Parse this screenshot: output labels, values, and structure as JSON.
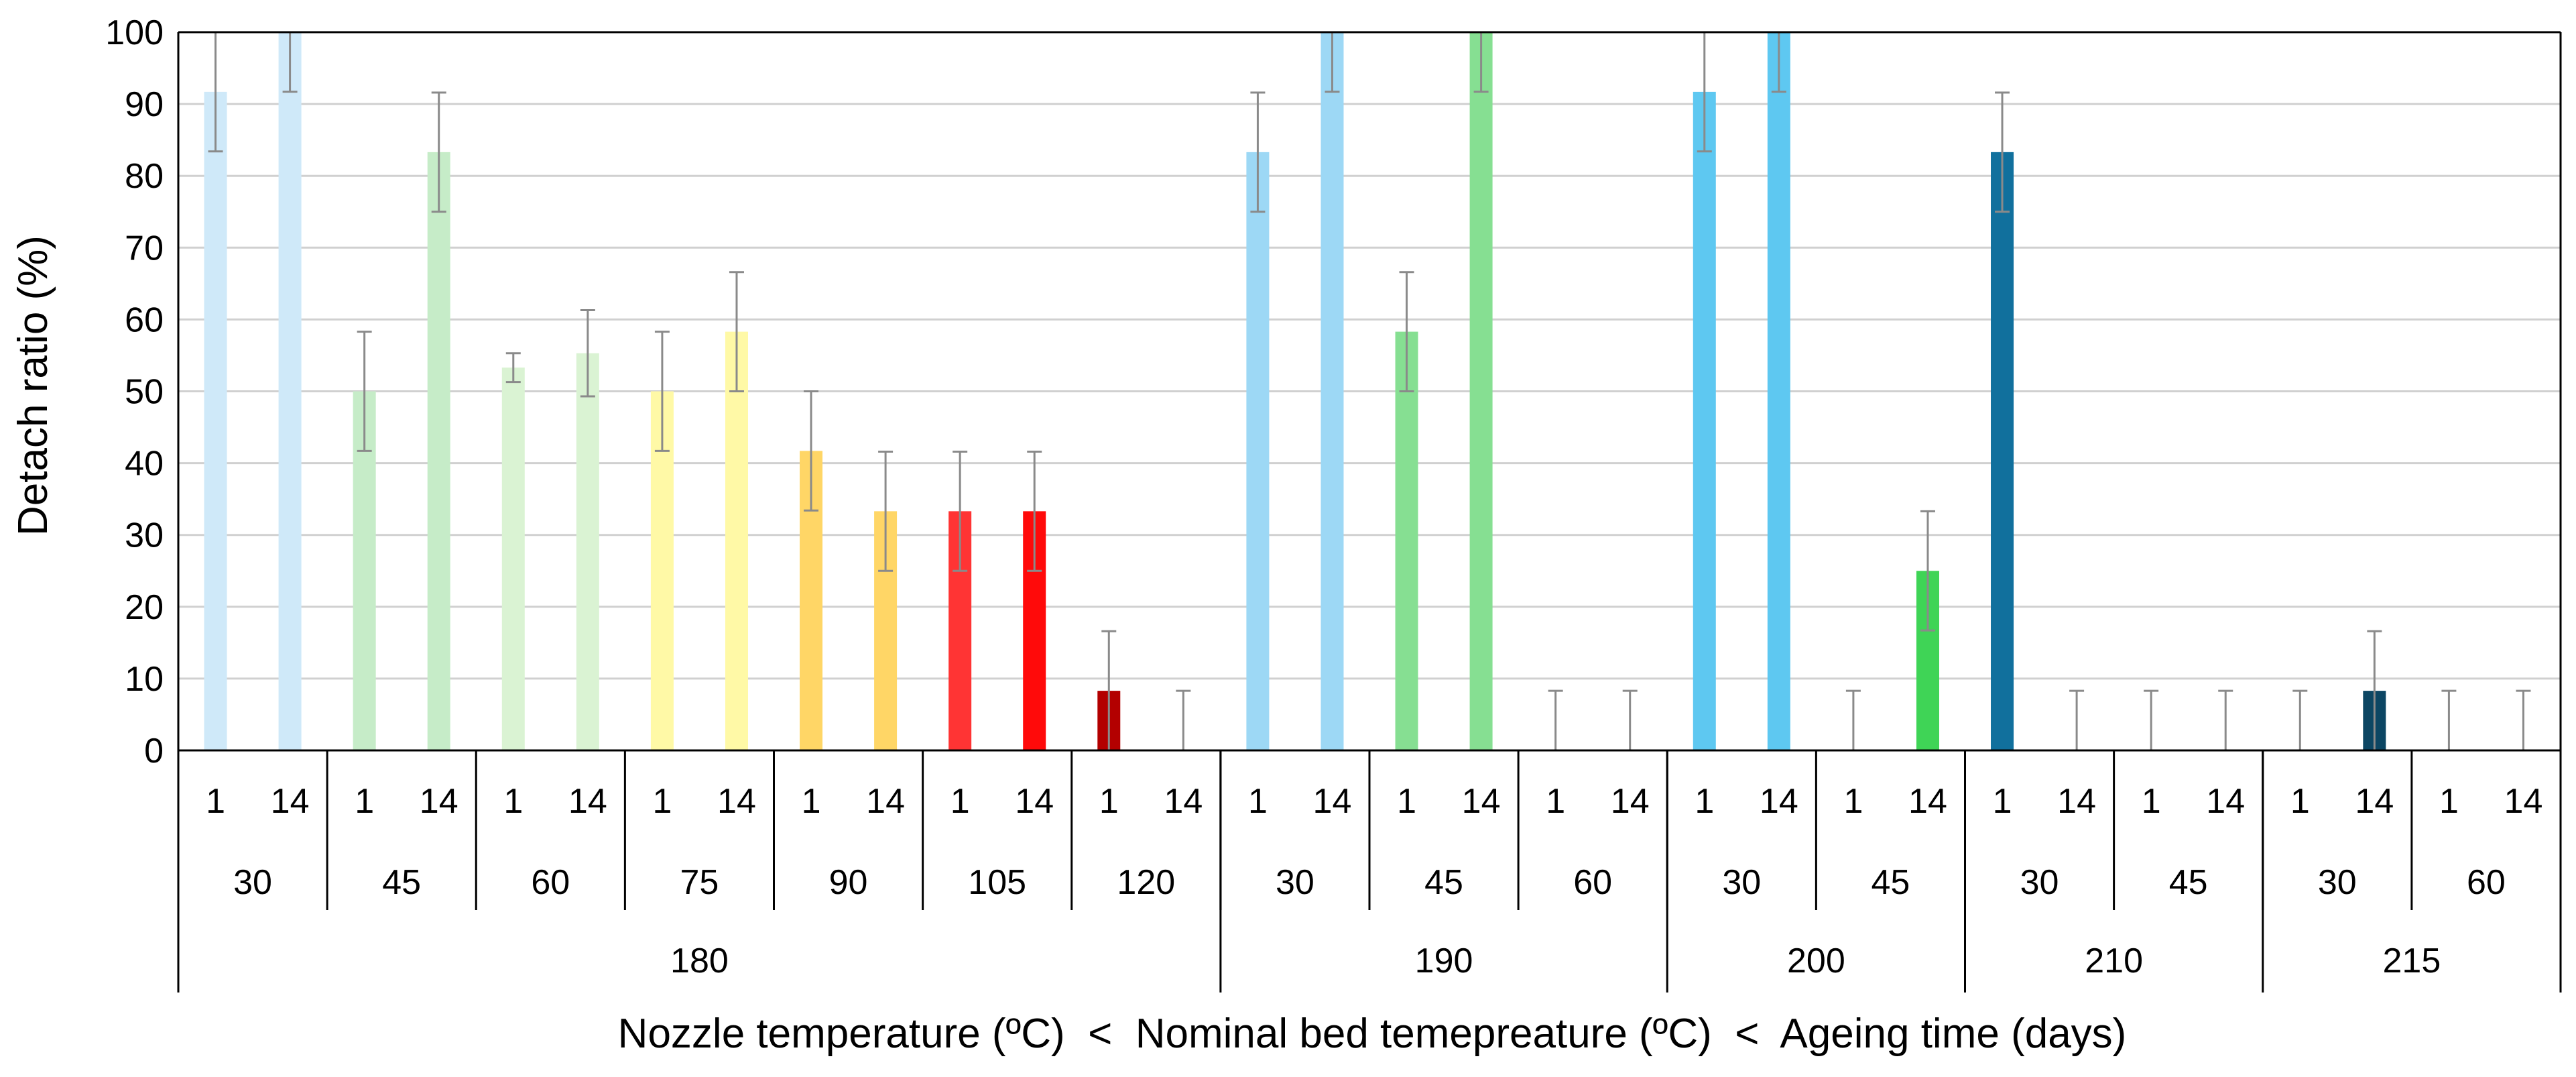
{
  "chart_data": {
    "type": "bar",
    "title": "",
    "ylabel": "Detach ratio (%)",
    "xlabel": "Nozzle temperature (ºC)  <  Nominal bed temepreature (ºC)  <  Ageing time (days)",
    "ylim": [
      0,
      100
    ],
    "yticks": [
      0,
      10,
      20,
      30,
      40,
      50,
      60,
      70,
      80,
      90,
      100
    ],
    "grid": true,
    "bars": [
      {
        "nozzle": "180",
        "bed": "30",
        "age": "1",
        "value": 91.7,
        "err": 8.3,
        "color": "#cfe9f9"
      },
      {
        "nozzle": "180",
        "bed": "30",
        "age": "14",
        "value": 100,
        "err": 8.3,
        "color": "#cfe9f9"
      },
      {
        "nozzle": "180",
        "bed": "45",
        "age": "1",
        "value": 50,
        "err": 8.3,
        "color": "#c6ecc8"
      },
      {
        "nozzle": "180",
        "bed": "45",
        "age": "14",
        "value": 83.3,
        "err": 8.3,
        "color": "#c6ecc8"
      },
      {
        "nozzle": "180",
        "bed": "60",
        "age": "1",
        "value": 53.3,
        "err": 2.0,
        "color": "#daf3d3"
      },
      {
        "nozzle": "180",
        "bed": "60",
        "age": "14",
        "value": 55.3,
        "err": 6.0,
        "color": "#daf3d3"
      },
      {
        "nozzle": "180",
        "bed": "75",
        "age": "1",
        "value": 50,
        "err": 8.3,
        "color": "#fff9a6"
      },
      {
        "nozzle": "180",
        "bed": "75",
        "age": "14",
        "value": 58.3,
        "err": 8.3,
        "color": "#fff9a6"
      },
      {
        "nozzle": "180",
        "bed": "90",
        "age": "1",
        "value": 41.7,
        "err": 8.3,
        "color": "#ffd666"
      },
      {
        "nozzle": "180",
        "bed": "90",
        "age": "14",
        "value": 33.3,
        "err": 8.3,
        "color": "#ffd666"
      },
      {
        "nozzle": "180",
        "bed": "105",
        "age": "1",
        "value": 33.3,
        "err": 8.3,
        "color": "#ff3434"
      },
      {
        "nozzle": "180",
        "bed": "105",
        "age": "14",
        "value": 33.3,
        "err": 8.3,
        "color": "#ff0a0a"
      },
      {
        "nozzle": "180",
        "bed": "120",
        "age": "1",
        "value": 8.3,
        "err": 8.3,
        "color": "#b30000"
      },
      {
        "nozzle": "180",
        "bed": "120",
        "age": "14",
        "value": 0,
        "err": 8.3,
        "color": "#b30000"
      },
      {
        "nozzle": "190",
        "bed": "30",
        "age": "1",
        "value": 83.3,
        "err": 8.3,
        "color": "#9dd8f5"
      },
      {
        "nozzle": "190",
        "bed": "30",
        "age": "14",
        "value": 100,
        "err": 8.3,
        "color": "#9dd8f5"
      },
      {
        "nozzle": "190",
        "bed": "45",
        "age": "1",
        "value": 58.3,
        "err": 8.3,
        "color": "#86df92"
      },
      {
        "nozzle": "190",
        "bed": "45",
        "age": "14",
        "value": 100,
        "err": 8.3,
        "color": "#86df92"
      },
      {
        "nozzle": "190",
        "bed": "60",
        "age": "1",
        "value": 0,
        "err": 8.3,
        "color": "#86df92"
      },
      {
        "nozzle": "190",
        "bed": "60",
        "age": "14",
        "value": 0,
        "err": 8.3,
        "color": "#86df92"
      },
      {
        "nozzle": "200",
        "bed": "30",
        "age": "1",
        "value": 91.7,
        "err": 8.3,
        "color": "#5ec8f1"
      },
      {
        "nozzle": "200",
        "bed": "30",
        "age": "14",
        "value": 100,
        "err": 8.3,
        "color": "#5ec8f1"
      },
      {
        "nozzle": "200",
        "bed": "45",
        "age": "1",
        "value": 0,
        "err": 8.3,
        "color": "#3fd456"
      },
      {
        "nozzle": "200",
        "bed": "45",
        "age": "14",
        "value": 25,
        "err": 8.3,
        "color": "#3fd456"
      },
      {
        "nozzle": "210",
        "bed": "30",
        "age": "1",
        "value": 83.3,
        "err": 8.3,
        "color": "#11709d"
      },
      {
        "nozzle": "210",
        "bed": "30",
        "age": "14",
        "value": 0,
        "err": 8.3,
        "color": "#11709d"
      },
      {
        "nozzle": "210",
        "bed": "45",
        "age": "1",
        "value": 0,
        "err": 8.3,
        "color": "#11709d"
      },
      {
        "nozzle": "210",
        "bed": "45",
        "age": "14",
        "value": 0,
        "err": 8.3,
        "color": "#11709d"
      },
      {
        "nozzle": "215",
        "bed": "30",
        "age": "1",
        "value": 0,
        "err": 8.3,
        "color": "#0c4663"
      },
      {
        "nozzle": "215",
        "bed": "30",
        "age": "14",
        "value": 8.3,
        "err": 8.3,
        "color": "#0c4663"
      },
      {
        "nozzle": "215",
        "bed": "60",
        "age": "1",
        "value": 0,
        "err": 8.3,
        "color": "#0c4663"
      },
      {
        "nozzle": "215",
        "bed": "60",
        "age": "14",
        "value": 0,
        "err": 8.3,
        "color": "#0c4663"
      }
    ]
  }
}
